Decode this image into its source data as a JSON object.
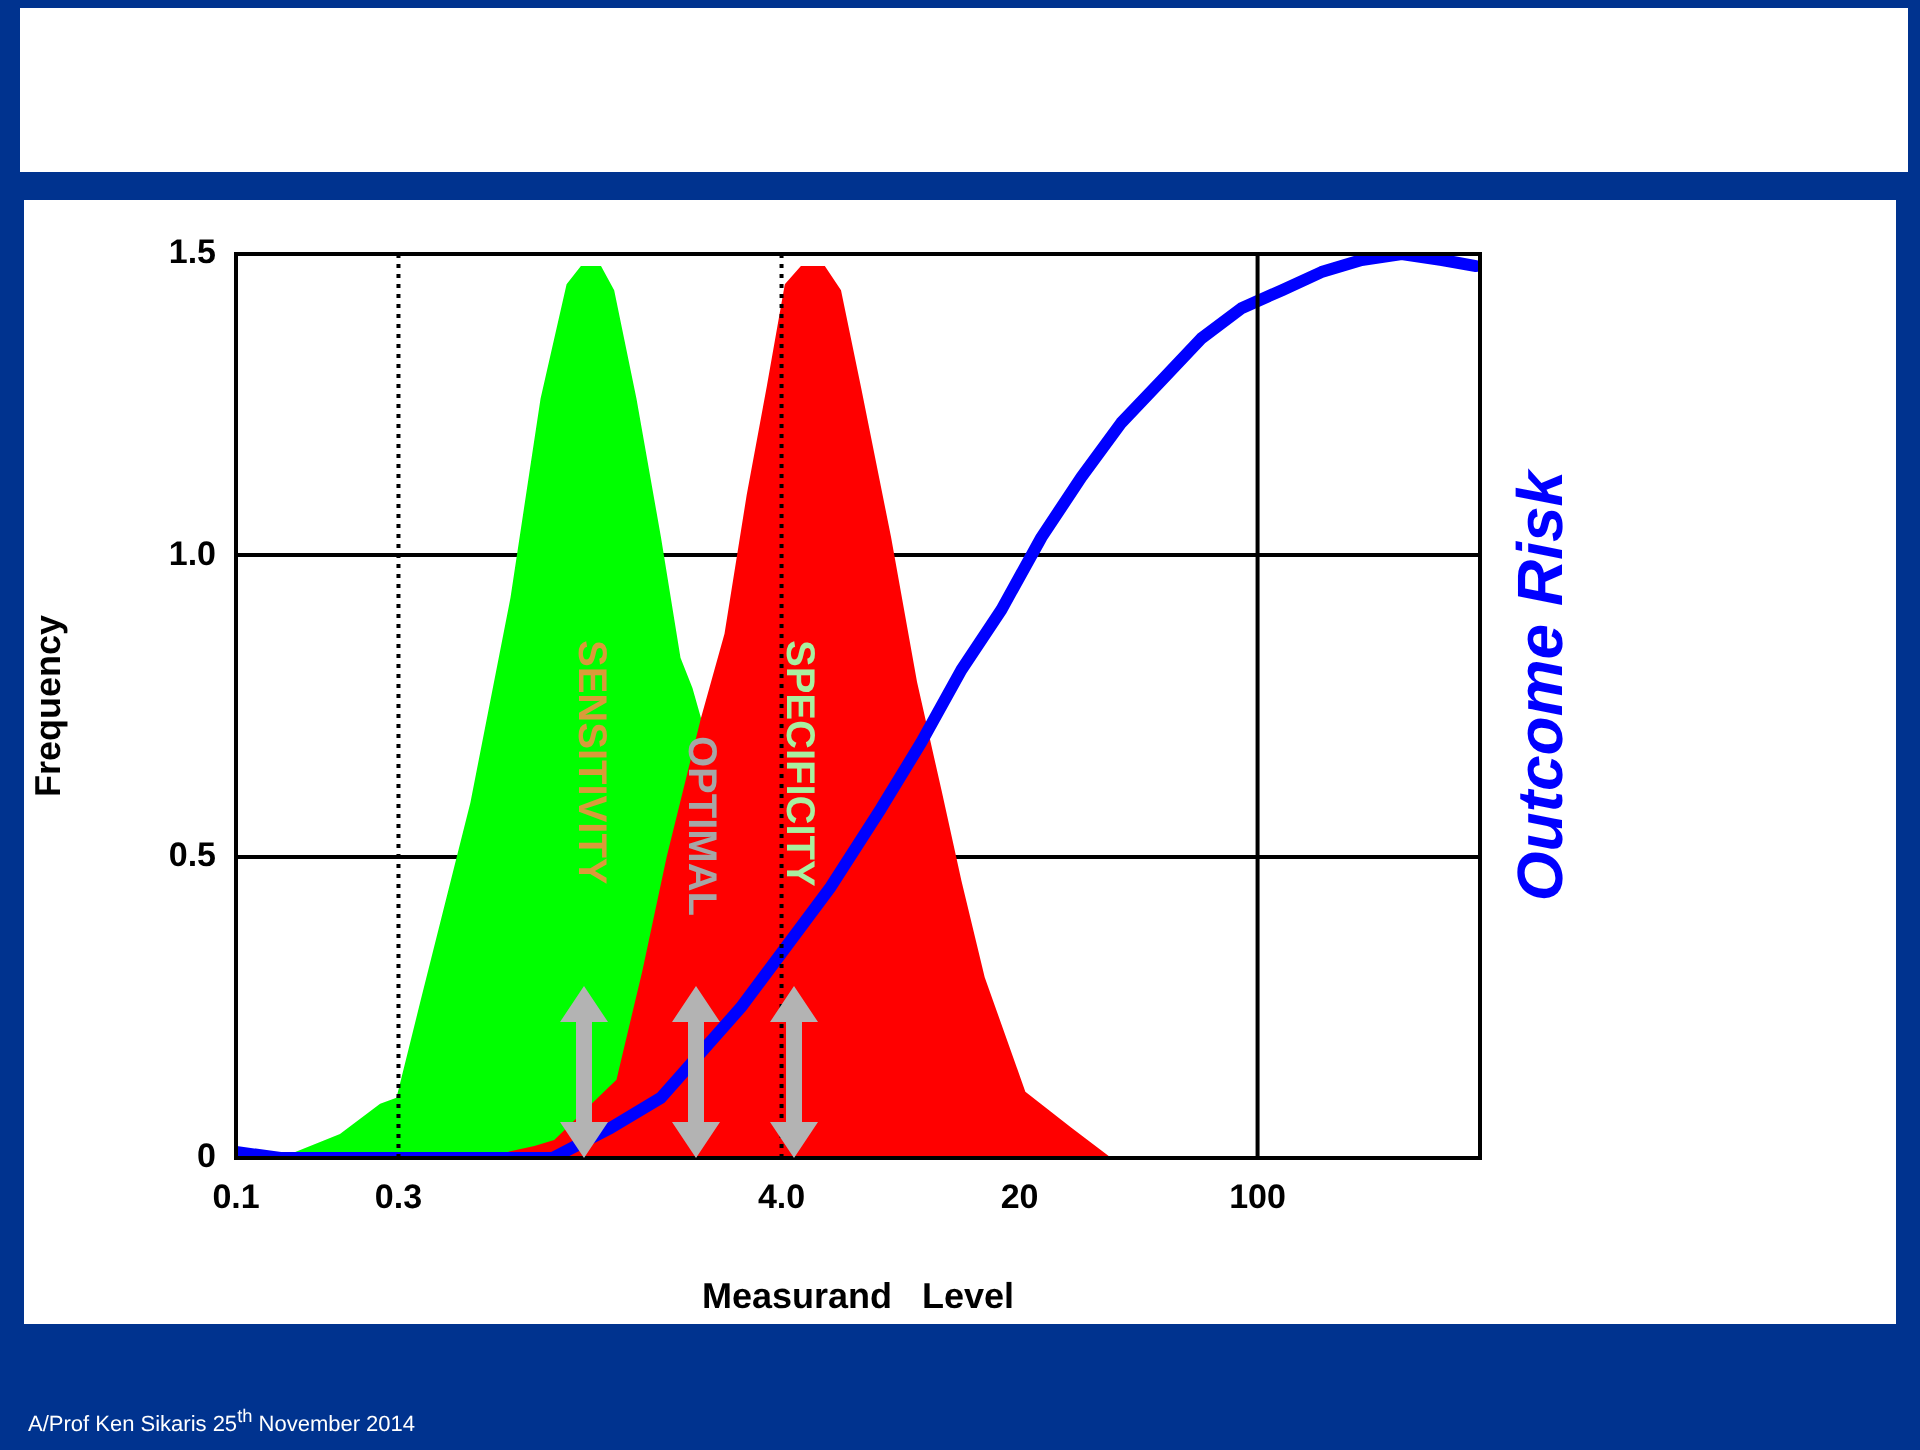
{
  "chart_data": {
    "type": "area",
    "xlabel": "Measurand   Level",
    "ylabel": "Frequency",
    "log": "x",
    "xlim": [
      0.1,
      450
    ],
    "ylim": [
      0,
      1.5
    ],
    "xticks": [
      0.1,
      0.3,
      {
        "value": 4,
        "label": "4.0"
      },
      20,
      100
    ],
    "yticks": [
      0,
      0.5,
      {
        "value": 1,
        "label": "1.0"
      },
      1.5
    ],
    "grid": "y",
    "legend": false,
    "series": [
      {
        "color": "#00ff00",
        "x": [
          0.135,
          0.202,
          0.265,
          0.296,
          0.348,
          0.488,
          0.64,
          0.784,
          0.935,
          1.03,
          1.18,
          1.29,
          1.5,
          1.77,
          2.02,
          2.19,
          2.32,
          2.58
        ],
        "values": [
          0,
          0.04,
          0.09,
          0.1,
          0.26,
          0.59,
          0.93,
          1.26,
          1.45,
          1.48,
          1.48,
          1.44,
          1.26,
          1.03,
          0.83,
          0.78,
          0.73,
          0
        ]
      },
      {
        "color": "#ff0000",
        "x": [
          0.522,
          0.752,
          0.86,
          1.31,
          1.56,
          1.84,
          2.32,
          2.72,
          3.16,
          3.62,
          4.09,
          4.56,
          5.36,
          5.98,
          6.84,
          8.39,
          10,
          11.8,
          13.5,
          15.8,
          20.8,
          28.4,
          37.2
        ],
        "values": [
          0,
          0.02,
          0.03,
          0.13,
          0.31,
          0.5,
          0.73,
          0.87,
          1.1,
          1.28,
          1.45,
          1.48,
          1.48,
          1.44,
          1.28,
          1.03,
          0.79,
          0.61,
          0.46,
          0.3,
          0.11,
          0.05,
          0
        ]
      },
      {
        "type": "line",
        "name": "Outcome Risk",
        "color": "#0000ff",
        "x": [
          0.1,
          0.135,
          0.303,
          0.85,
          1.26,
          1.77,
          3.04,
          5.58,
          7.84,
          10.3,
          13.5,
          17.7,
          23.2,
          30.4,
          39.8,
          52.2,
          68.4,
          89.7,
          118,
          154,
          202,
          265,
          348,
          438
        ],
        "values": [
          0.01,
          0,
          0,
          0,
          0.05,
          0.1,
          0.25,
          0.45,
          0.58,
          0.69,
          0.81,
          0.91,
          1.03,
          1.13,
          1.22,
          1.29,
          1.36,
          1.41,
          1.44,
          1.47,
          1.49,
          1.5,
          1.49,
          1.48
        ]
      }
    ],
    "ref_lines": [
      {
        "axis": "x",
        "value": 0.3,
        "line_style": "dotted"
      },
      {
        "axis": "x",
        "value": 4,
        "line_style": "dotted"
      },
      {
        "axis": "x",
        "value": 100,
        "line_style": "solid"
      }
    ],
    "annotations": [
      "SENSITIVITY",
      "OPTIMAL",
      "SPECIFICITY",
      "A/Prof Ken Sikaris 25$^{th}$ November 2014"
    ]
  }
}
